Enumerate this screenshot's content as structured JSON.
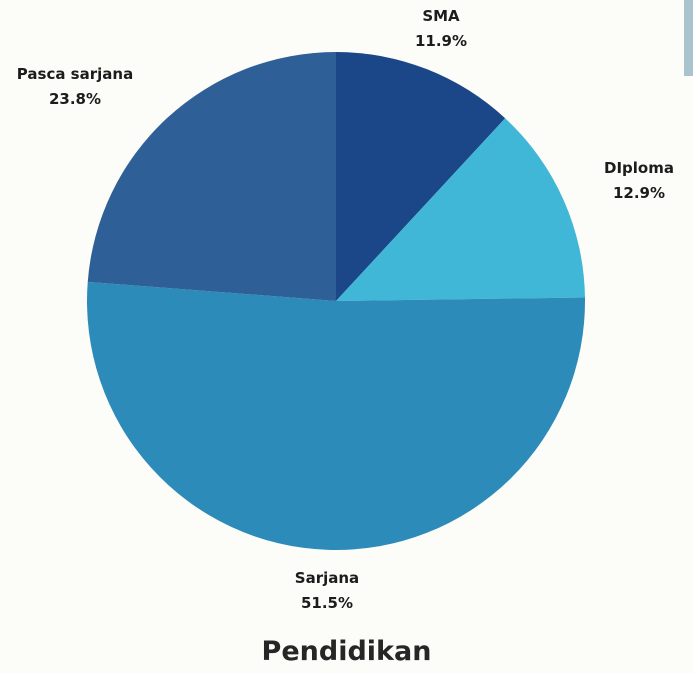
{
  "chart_data": {
    "type": "pie",
    "title": "Pendidikan",
    "slices": [
      {
        "label": "SMA",
        "percent_label": "11.9%",
        "value": 11.9,
        "color": "#1b4789"
      },
      {
        "label": "DIploma",
        "percent_label": "12.9%",
        "value": 12.9,
        "color": "#40b7d7"
      },
      {
        "label": "Sarjana",
        "percent_label": "51.5%",
        "value": 51.5,
        "color": "#2d8bba"
      },
      {
        "label": "Pasca sarjana",
        "percent_label": "23.8%",
        "value": 23.8,
        "color": "#2e5f97"
      }
    ],
    "start_angle": "top",
    "direction": "clockwise",
    "legend": "none"
  }
}
